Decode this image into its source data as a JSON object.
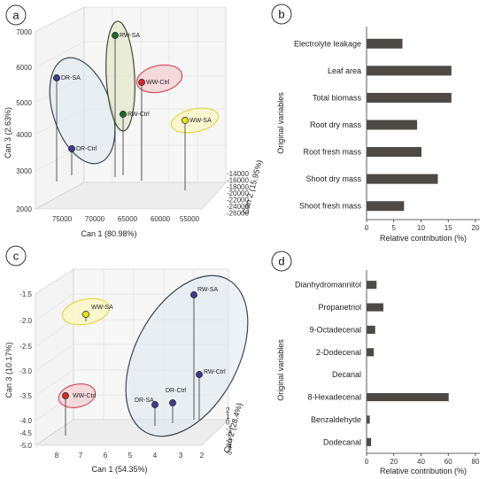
{
  "panels": {
    "a": "a",
    "b": "b",
    "c": "c",
    "d": "d"
  },
  "chart_data": [
    {
      "id": "a",
      "type": "scatter",
      "subtype": "3d-scatter",
      "xlabel": "Can 1 (80.98%)",
      "ylabel": "Can 3 (2.63%)",
      "zlabel": "Can 2 (15.95%)",
      "x_ticks": [
        "75000",
        "70000",
        "65000",
        "60000",
        "55000"
      ],
      "y_ticks": [
        "2000",
        "3000",
        "4000",
        "5000",
        "6000",
        "7000"
      ],
      "z_ticks": [
        "-14000",
        "-16000",
        "-18000",
        "-20000",
        "-22000",
        "-24000",
        "-26000"
      ],
      "points": [
        {
          "label": "DR-SA",
          "color": "#3d3c8c"
        },
        {
          "label": "DR-Ctrl",
          "color": "#3d3c8c"
        },
        {
          "label": "RW-SA",
          "color": "#1f6b2a"
        },
        {
          "label": "RW-Ctrl",
          "color": "#1f6b2a"
        },
        {
          "label": "WW-Ctrl",
          "color": "#d42a2a"
        },
        {
          "label": "WW-SA",
          "color": "#e8e21a"
        }
      ]
    },
    {
      "id": "b",
      "type": "bar",
      "orientation": "horizontal",
      "ylabel": "Original variables",
      "xlabel": "Relative contribution  (%)",
      "xlim": [
        0,
        20
      ],
      "x_ticks": [
        "0",
        "5",
        "10",
        "15",
        "20"
      ],
      "categories": [
        "Electrolyte leakage",
        "Leaf area",
        "Total biomass",
        "Root dry mass",
        "Root fresh mass",
        "Shoot dry mass",
        "Shoot fresh mass"
      ],
      "values": [
        6.5,
        15.5,
        15.5,
        9.2,
        10.0,
        13.0,
        6.8
      ],
      "bar_color": "#4d4a46"
    },
    {
      "id": "c",
      "type": "scatter",
      "subtype": "3d-scatter",
      "xlabel": "Can 1 (54.35%)",
      "ylabel": "Can 3 (10.17%)",
      "zlabel": "Can 2 (28.4%)",
      "x_ticks": [
        "8",
        "7",
        "6",
        "5",
        "4",
        "3",
        "2"
      ],
      "y_ticks": [
        "-1.5",
        "-2.0",
        "-2.5",
        "-3.0",
        "-3.5",
        "-4.0",
        "-4.5",
        "-5.0"
      ],
      "z_ticks": [
        "2",
        "1",
        "0",
        "-1",
        "-2",
        "-3",
        "-4",
        "-5"
      ],
      "points": [
        {
          "label": "RW-SA",
          "color": "#3d3c8c"
        },
        {
          "label": "WW-SA",
          "color": "#e8e21a"
        },
        {
          "label": "RW-Ctrl",
          "color": "#3d3c8c"
        },
        {
          "label": "DR-Ctrl",
          "color": "#3d3c8c"
        },
        {
          "label": "DR-SA",
          "color": "#3d3c8c"
        },
        {
          "label": "WW-Ctrl",
          "color": "#d42a2a"
        }
      ]
    },
    {
      "id": "d",
      "type": "bar",
      "orientation": "horizontal",
      "ylabel": "Original variables",
      "xlabel": "Relative contribution  (%)",
      "xlim": [
        0,
        80
      ],
      "x_ticks": [
        "0",
        "20",
        "40",
        "60",
        "80"
      ],
      "categories": [
        "Dianhydromannitol",
        "Propanetriol",
        "9-Octadecenal",
        "2-Dodecenal",
        "Decanal",
        "8-Hexadecenal",
        "Benzaldehyde",
        "Dodecanal"
      ],
      "values": [
        7,
        12,
        6,
        5,
        0,
        60,
        2,
        3
      ],
      "bar_color": "#4d4a46"
    }
  ]
}
